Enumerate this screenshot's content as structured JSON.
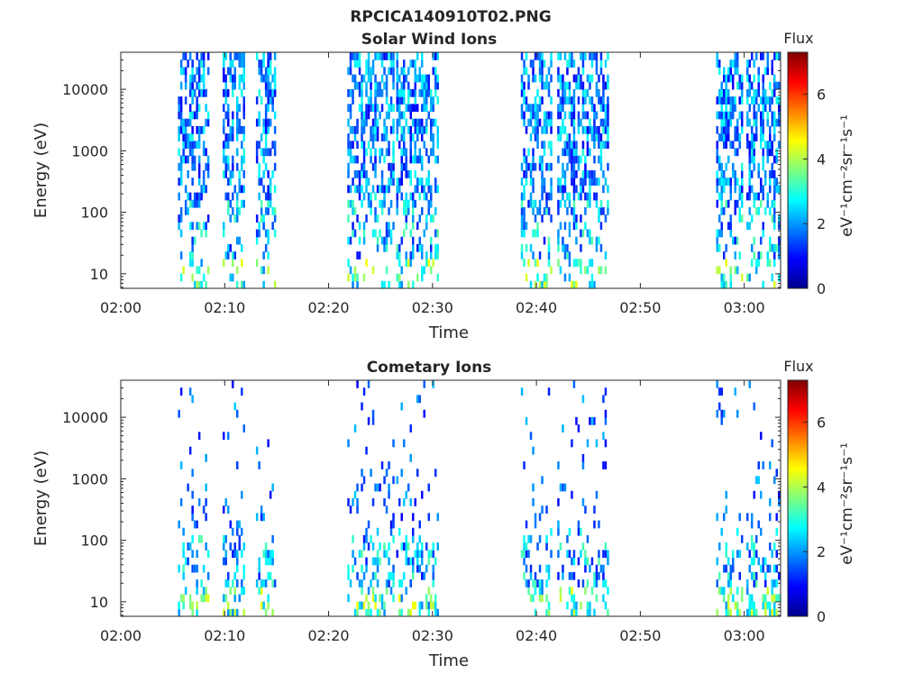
{
  "figure": {
    "title": "RPCICA140910T02.PNG"
  },
  "chart_data": [
    {
      "type": "heatmap",
      "title": "Solar Wind Ions",
      "xlabel": "Time",
      "ylabel": "Energy (eV)",
      "x_ticks": [
        "02:00",
        "02:10",
        "02:20",
        "02:30",
        "02:40",
        "02:50",
        "03:00"
      ],
      "x_tick_minutes": [
        0,
        10,
        20,
        30,
        40,
        50,
        60
      ],
      "xlim_minutes": [
        0,
        63.5
      ],
      "y_scale": "log",
      "y_ticks": [
        "10",
        "100",
        "1000",
        "10000"
      ],
      "y_tick_values": [
        10,
        100,
        1000,
        10000
      ],
      "ylim": [
        5.8,
        40000
      ],
      "colorbar": {
        "label": "Flux",
        "unit_label": "eV⁻¹cm⁻²sr⁻¹s⁻¹",
        "ticks": [
          "0",
          "2",
          "4",
          "6"
        ],
        "tick_values": [
          0,
          2,
          4,
          6
        ],
        "range": [
          0,
          7.3
        ],
        "colormap": "jet"
      },
      "active_intervals_minutes": [
        [
          5.5,
          8.4
        ],
        [
          9.8,
          11.8
        ],
        [
          13.0,
          14.8
        ],
        [
          21.8,
          26.2
        ],
        [
          26.5,
          30.5
        ],
        [
          38.5,
          41.5
        ],
        [
          42.0,
          46.8
        ],
        [
          57.3,
          59.8
        ],
        [
          60.2,
          63.3
        ]
      ],
      "energy_extent_eV": [
        5.8,
        40000
      ],
      "flux_range_shown": [
        0.8,
        4.5
      ]
    },
    {
      "type": "heatmap",
      "title": "Cometary Ions",
      "xlabel": "Time",
      "ylabel": "Energy (eV)",
      "x_ticks": [
        "02:00",
        "02:10",
        "02:20",
        "02:30",
        "02:40",
        "02:50",
        "03:00"
      ],
      "x_tick_minutes": [
        0,
        10,
        20,
        30,
        40,
        50,
        60
      ],
      "xlim_minutes": [
        0,
        63.5
      ],
      "y_scale": "log",
      "y_ticks": [
        "10",
        "100",
        "1000",
        "10000"
      ],
      "y_tick_values": [
        10,
        100,
        1000,
        10000
      ],
      "ylim": [
        5.8,
        40000
      ],
      "colorbar": {
        "label": "Flux",
        "unit_label": "eV⁻¹cm⁻²sr⁻¹s⁻¹",
        "ticks": [
          "0",
          "2",
          "4",
          "6"
        ],
        "tick_values": [
          0,
          2,
          4,
          6
        ],
        "range": [
          0,
          7.3
        ],
        "colormap": "jet"
      },
      "active_intervals_minutes": [
        [
          5.5,
          8.4
        ],
        [
          9.8,
          11.8
        ],
        [
          13.0,
          14.8
        ],
        [
          21.8,
          26.2
        ],
        [
          26.5,
          30.5
        ],
        [
          38.5,
          41.5
        ],
        [
          42.0,
          46.8
        ],
        [
          57.3,
          59.8
        ],
        [
          60.2,
          63.3
        ]
      ],
      "energy_extent_eV": [
        5.8,
        40000
      ],
      "flux_range_shown": [
        0.8,
        3.8
      ]
    }
  ]
}
